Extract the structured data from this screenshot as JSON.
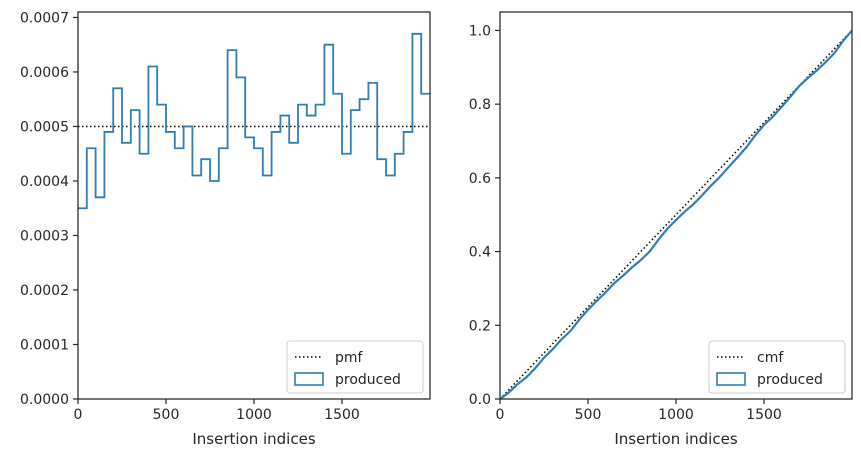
{
  "colors": {
    "produced": "#2f7fae",
    "reference": "#000000",
    "axes": "#262626",
    "legend_border": "#cccccc"
  },
  "chart_data": [
    {
      "type": "step",
      "xlabel": "Insertion indices",
      "ylabel": "",
      "xlim": [
        0,
        2000
      ],
      "ylim": [
        0,
        0.00071
      ],
      "xticks": [
        0,
        500,
        1000,
        1500
      ],
      "xtick_labels": [
        "0",
        "500",
        "1000",
        "1500"
      ],
      "yticks": [
        0,
        0.0001,
        0.0002,
        0.0003,
        0.0004,
        0.0005,
        0.0006,
        0.0007
      ],
      "ytick_labels": [
        "0.0000",
        "0.0001",
        "0.0002",
        "0.0003",
        "0.0004",
        "0.0005",
        "0.0006",
        "0.0007"
      ],
      "legend": {
        "location": "lower-right",
        "entries": [
          "pmf",
          "produced"
        ]
      },
      "series": [
        {
          "name": "pmf",
          "style": "dotted",
          "x": [
            0,
            2000
          ],
          "values": [
            0.0005,
            0.0005
          ]
        },
        {
          "name": "produced",
          "style": "step",
          "bin_width": 50,
          "bin_edges_start": 0,
          "values": [
            0.00035,
            0.00046,
            0.00037,
            0.00049,
            0.00057,
            0.00047,
            0.00053,
            0.00045,
            0.00061,
            0.00054,
            0.00049,
            0.00046,
            0.0005,
            0.00041,
            0.00044,
            0.0004,
            0.00046,
            0.00064,
            0.00059,
            0.00048,
            0.00046,
            0.00041,
            0.00049,
            0.00052,
            0.00047,
            0.00054,
            0.00052,
            0.00054,
            0.00065,
            0.00056,
            0.00045,
            0.00053,
            0.00055,
            0.00058,
            0.00044,
            0.00041,
            0.00045,
            0.00049,
            0.00067,
            0.00056
          ]
        }
      ]
    },
    {
      "type": "line",
      "xlabel": "Insertion indices",
      "ylabel": "",
      "xlim": [
        0,
        2000
      ],
      "ylim": [
        0,
        1.05
      ],
      "xticks": [
        0,
        500,
        1000,
        1500
      ],
      "xtick_labels": [
        "0",
        "500",
        "1000",
        "1500"
      ],
      "yticks": [
        0,
        0.2,
        0.4,
        0.6,
        0.8,
        1.0
      ],
      "ytick_labels": [
        "0.0",
        "0.2",
        "0.4",
        "0.6",
        "0.8",
        "1.0"
      ],
      "legend": {
        "location": "lower-right",
        "entries": [
          "cmf",
          "produced"
        ]
      },
      "series": [
        {
          "name": "cmf",
          "style": "dotted",
          "x": [
            0,
            2000
          ],
          "values": [
            0,
            1.0
          ]
        },
        {
          "name": "produced",
          "style": "solid",
          "x": [
            0,
            50,
            100,
            150,
            200,
            250,
            300,
            350,
            400,
            450,
            500,
            550,
            600,
            650,
            700,
            750,
            800,
            850,
            900,
            950,
            1000,
            1050,
            1100,
            1150,
            1200,
            1250,
            1300,
            1350,
            1400,
            1450,
            1500,
            1550,
            1600,
            1650,
            1700,
            1750,
            1800,
            1850,
            1900,
            1950,
            2000
          ],
          "values": [
            0,
            0.0175,
            0.0405,
            0.059,
            0.0835,
            0.112,
            0.1355,
            0.162,
            0.1845,
            0.215,
            0.242,
            0.2665,
            0.2895,
            0.3145,
            0.335,
            0.357,
            0.377,
            0.4,
            0.432,
            0.4615,
            0.4855,
            0.5085,
            0.529,
            0.5535,
            0.5795,
            0.603,
            0.63,
            0.656,
            0.683,
            0.7155,
            0.7435,
            0.766,
            0.7925,
            0.82,
            0.849,
            0.871,
            0.8915,
            0.914,
            0.9385,
            0.972,
            1.0
          ]
        }
      ]
    }
  ]
}
